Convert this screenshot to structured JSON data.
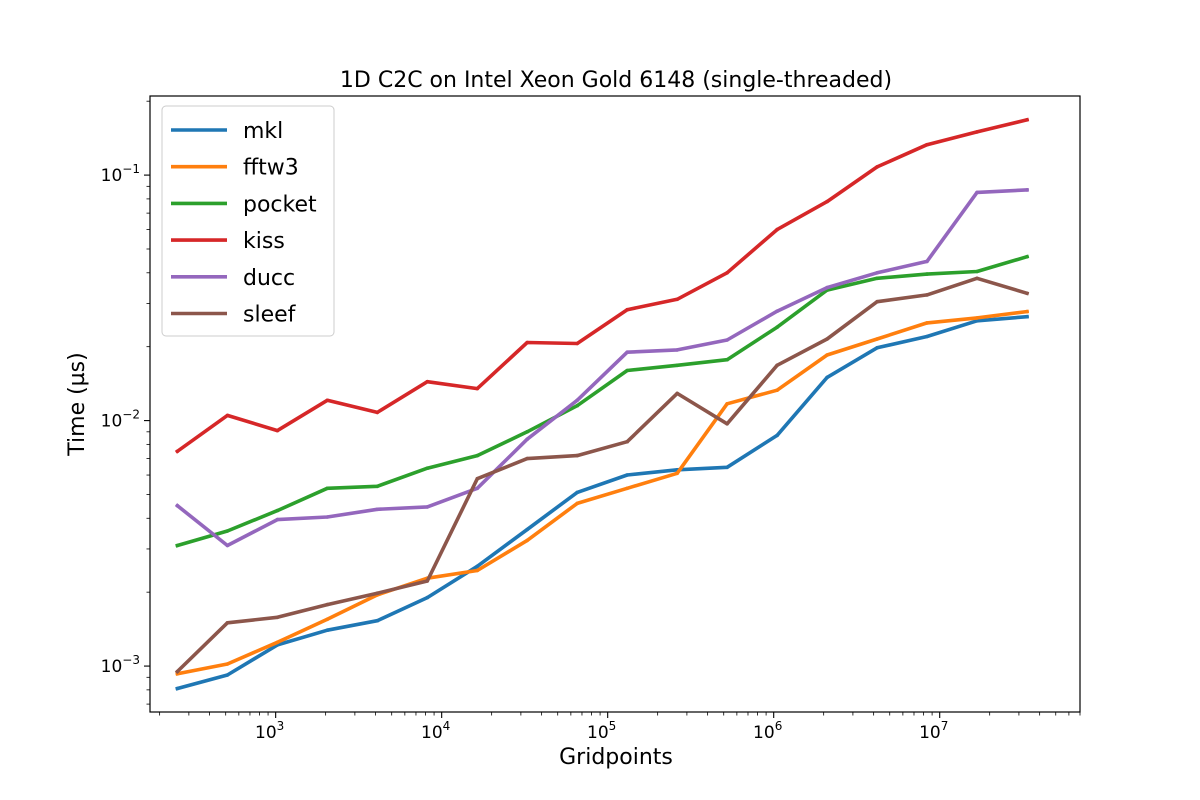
{
  "chart_data": {
    "type": "line",
    "title": "1D C2C on Intel Xeon Gold 6148 (single-threaded)",
    "xlabel": "Gridpoints",
    "ylabel": "Time (µs)",
    "xscale": "log",
    "yscale": "log",
    "xlim": [
      175,
      70000000
    ],
    "ylim": [
      0.00065,
      0.21
    ],
    "x_ticks": [
      {
        "base": "10",
        "exp": "3",
        "value": 1000
      },
      {
        "base": "10",
        "exp": "4",
        "value": 10000
      },
      {
        "base": "10",
        "exp": "5",
        "value": 100000
      },
      {
        "base": "10",
        "exp": "6",
        "value": 1000000
      },
      {
        "base": "10",
        "exp": "7",
        "value": 10000000
      }
    ],
    "y_ticks": [
      {
        "base": "10",
        "exp": "−3",
        "value": 0.001
      },
      {
        "base": "10",
        "exp": "−2",
        "value": 0.01
      },
      {
        "base": "10",
        "exp": "−1",
        "value": 0.1
      }
    ],
    "grid": false,
    "legend_position": "top-left",
    "x": [
      256,
      512,
      1024,
      2048,
      4096,
      8192,
      16384,
      32768,
      65536,
      131072,
      262144,
      524288,
      1048576,
      2097152,
      4194304,
      8388608,
      16777216,
      33554432
    ],
    "series": [
      {
        "name": "mkl",
        "color": "#1f77b4",
        "values": [
          0.00081,
          0.00092,
          0.00122,
          0.0014,
          0.00153,
          0.0019,
          0.00255,
          0.0036,
          0.0051,
          0.006,
          0.0063,
          0.00645,
          0.0087,
          0.015,
          0.0198,
          0.022,
          0.0255,
          0.0265
        ]
      },
      {
        "name": "fftw3",
        "color": "#ff7f0e",
        "values": [
          0.00093,
          0.00102,
          0.00125,
          0.00155,
          0.00195,
          0.00228,
          0.00245,
          0.00325,
          0.0046,
          0.0053,
          0.0061,
          0.0117,
          0.0133,
          0.0185,
          0.0215,
          0.025,
          0.0262,
          0.0278
        ]
      },
      {
        "name": "pocket",
        "color": "#2ca02c",
        "values": [
          0.0031,
          0.00355,
          0.0043,
          0.0053,
          0.0054,
          0.0064,
          0.0072,
          0.009,
          0.0115,
          0.016,
          0.0168,
          0.0177,
          0.024,
          0.034,
          0.038,
          0.0395,
          0.0405,
          0.0465
        ]
      },
      {
        "name": "kiss",
        "color": "#d62728",
        "values": [
          0.0075,
          0.0105,
          0.0091,
          0.0121,
          0.0108,
          0.0144,
          0.0135,
          0.0208,
          0.0206,
          0.0283,
          0.0312,
          0.04,
          0.06,
          0.078,
          0.108,
          0.133,
          0.15,
          0.168
        ]
      },
      {
        "name": "ducc",
        "color": "#9467bd",
        "values": [
          0.0045,
          0.0031,
          0.00395,
          0.00405,
          0.00435,
          0.00445,
          0.0053,
          0.0084,
          0.0121,
          0.019,
          0.0194,
          0.0213,
          0.0279,
          0.0348,
          0.04,
          0.0445,
          0.085,
          0.087
        ]
      },
      {
        "name": "sleef",
        "color": "#8c564b",
        "values": [
          0.00095,
          0.0015,
          0.00158,
          0.00178,
          0.00198,
          0.00222,
          0.0058,
          0.007,
          0.0072,
          0.0082,
          0.0129,
          0.0097,
          0.0168,
          0.0215,
          0.0305,
          0.0325,
          0.038,
          0.033
        ]
      }
    ]
  }
}
